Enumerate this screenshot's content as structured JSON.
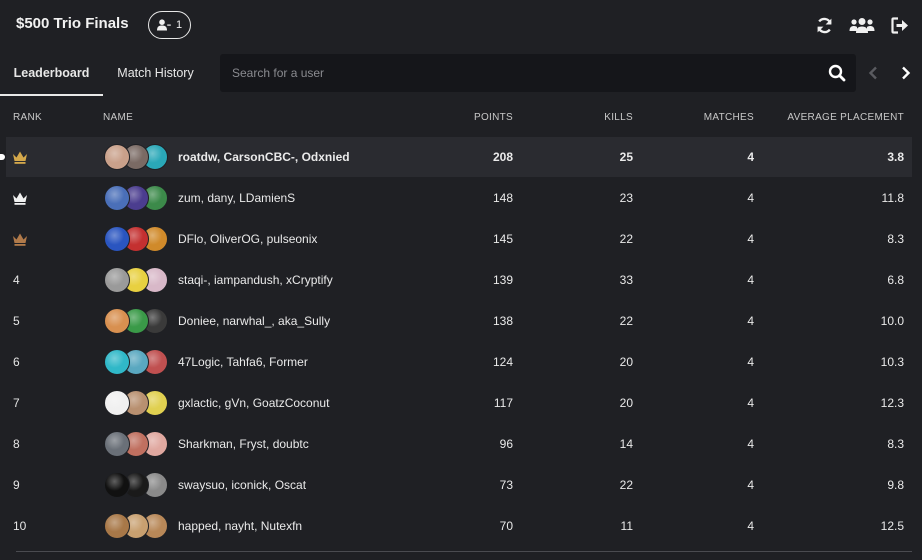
{
  "header": {
    "title": "$500 Trio Finals",
    "viewer_count": "1",
    "icons": [
      "refresh-icon",
      "users-icon",
      "sign-out-icon"
    ]
  },
  "tabs": [
    {
      "label": "Leaderboard",
      "active": true
    },
    {
      "label": "Match History",
      "active": false
    }
  ],
  "search": {
    "placeholder": "Search for a user",
    "value": ""
  },
  "columns": {
    "rank": "RANK",
    "name": "NAME",
    "points": "POINTS",
    "kills": "KILLS",
    "matches": "MATCHES",
    "avg_placement": "AVERAGE PLACEMENT"
  },
  "colors": {
    "background": "#1f2024",
    "highlight_row": "#2a2b30",
    "crown_gold": "#d4a84b",
    "crown_silver": "#f0f0f0",
    "crown_bronze": "#b07a4a"
  },
  "rows": [
    {
      "rank": "",
      "crown": "gold",
      "names": "roatdw, CarsonCBC-, Odxnied",
      "points": "208",
      "kills": "25",
      "matches": "4",
      "avg": "3.8",
      "avatars": [
        "#c9a08a",
        "#7a6a64",
        "#2aa8b8"
      ]
    },
    {
      "rank": "",
      "crown": "silver",
      "names": "zum, dany, LDamienS",
      "points": "148",
      "kills": "23",
      "matches": "4",
      "avg": "11.8",
      "avatars": [
        "#4a6fb8",
        "#4b3d8f",
        "#3c8a4a"
      ]
    },
    {
      "rank": "",
      "crown": "bronze",
      "names": "DFlo, OliverOG, pulseonix",
      "points": "145",
      "kills": "22",
      "matches": "4",
      "avg": "8.3",
      "avatars": [
        "#2a55c0",
        "#c43030",
        "#d08a2a"
      ]
    },
    {
      "rank": "4",
      "crown": "",
      "names": "staqi-, iampandush, xCryptify",
      "points": "139",
      "kills": "33",
      "matches": "4",
      "avg": "6.8",
      "avatars": [
        "#9a9a9a",
        "#e8d040",
        "#d8b8c8"
      ]
    },
    {
      "rank": "5",
      "crown": "",
      "names": "Doniee, narwhal_, aka_Sully",
      "points": "138",
      "kills": "22",
      "matches": "4",
      "avg": "10.0",
      "avatars": [
        "#d89050",
        "#3a9a48",
        "#3a3a3a"
      ]
    },
    {
      "rank": "6",
      "crown": "",
      "names": "47Logic, Tahfa6, Former",
      "points": "124",
      "kills": "20",
      "matches": "4",
      "avg": "10.3",
      "avatars": [
        "#30b8c8",
        "#5aa8c0",
        "#c05050"
      ]
    },
    {
      "rank": "7",
      "crown": "",
      "names": "gxlactic, gVn, GoatzCoconut",
      "points": "117",
      "kills": "20",
      "matches": "4",
      "avg": "12.3",
      "avatars": [
        "#f0f0f0",
        "#b89070",
        "#e0d050"
      ]
    },
    {
      "rank": "8",
      "crown": "",
      "names": "Sharkman, Fryst, doubtc",
      "points": "96",
      "kills": "14",
      "matches": "4",
      "avg": "8.3",
      "avatars": [
        "#6a7078",
        "#c07060",
        "#e0a8a0"
      ]
    },
    {
      "rank": "9",
      "crown": "",
      "names": "swaysuo, iconick, Oscat",
      "points": "73",
      "kills": "22",
      "matches": "4",
      "avg": "9.8",
      "avatars": [
        "#111111",
        "#1a1a1a",
        "#8a8a8a"
      ]
    },
    {
      "rank": "10",
      "crown": "",
      "names": "happed, nayht, Nutexfn",
      "points": "70",
      "kills": "11",
      "matches": "4",
      "avg": "12.5",
      "avatars": [
        "#a87848",
        "#c8a070",
        "#b88858"
      ]
    }
  ]
}
